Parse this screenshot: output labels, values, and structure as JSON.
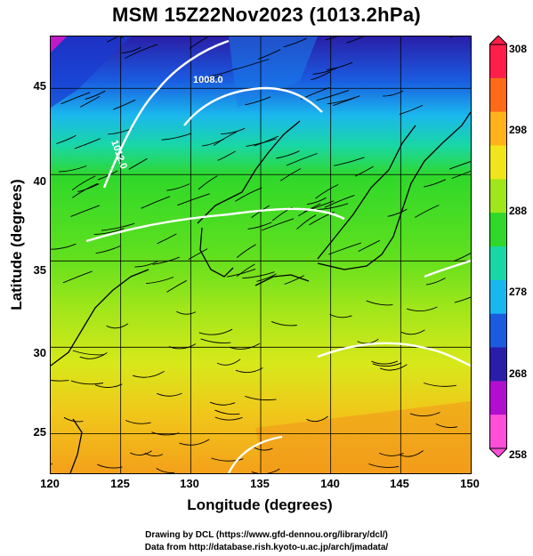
{
  "title": "MSM 15Z22Nov2023 (1013.2hPa)",
  "xlabel": "Longitude (degrees)",
  "ylabel": "Latitude  (degrees)",
  "x_ticks": [
    "120",
    "125",
    "130",
    "135",
    "140",
    "145",
    "150"
  ],
  "y_ticks": [
    "45",
    "40",
    "35",
    "30",
    "25"
  ],
  "colorbar": {
    "ticks": [
      "308",
      "298",
      "288",
      "278",
      "268",
      "258"
    ],
    "range": [
      258,
      308
    ],
    "colors": [
      "#ff1e4a",
      "#ff6a1a",
      "#ffb21a",
      "#f0e51a",
      "#9fe61a",
      "#2fd82a",
      "#19d7a5",
      "#1ab7ee",
      "#1a5be0",
      "#2a1ea8",
      "#b00fd0",
      "#ff4fd8"
    ]
  },
  "contour_labels": [
    "1008.0",
    "1012.0"
  ],
  "credit_line1": "Drawing by DCL (https://www.gfd-dennou.org/library/dcl/)",
  "credit_line2": "Data from http://database.rish.kyoto-u.ac.jp/arch/jmadata/",
  "map_data": {
    "type": "map",
    "lon_range": [
      120,
      150
    ],
    "lat_range": [
      22.7,
      48
    ],
    "grid": true
  }
}
